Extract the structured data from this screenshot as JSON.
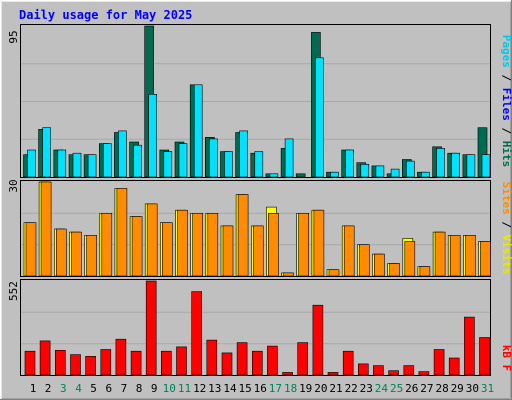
{
  "chart_data": [
    {
      "type": "bar",
      "title": "Daily usage for May 2025",
      "panel": "hits-files-pages",
      "ymax_label": "95",
      "ylim": [
        0,
        95
      ],
      "categories": [
        "1",
        "2",
        "3",
        "4",
        "5",
        "6",
        "7",
        "8",
        "9",
        "10",
        "11",
        "12",
        "13",
        "14",
        "15",
        "16",
        "17",
        "18",
        "19",
        "20",
        "21",
        "22",
        "23",
        "24",
        "25",
        "26",
        "27",
        "28",
        "29",
        "30",
        "31"
      ],
      "weekend_days": [
        "3",
        "4",
        "10",
        "11",
        "17",
        "18",
        "24",
        "25",
        "31"
      ],
      "series": [
        {
          "name": "Hits",
          "color": "#006b51",
          "values": [
            14,
            30,
            17,
            14,
            14,
            21,
            28,
            22,
            95,
            17,
            22,
            58,
            25,
            16,
            28,
            15,
            2,
            18,
            2,
            91,
            3,
            17,
            9,
            7,
            2,
            11,
            3,
            19,
            15,
            14,
            31
          ]
        },
        {
          "name": "Files",
          "color": "#0000ff",
          "values": [
            0,
            0,
            0,
            0,
            0,
            0,
            0,
            0,
            0,
            0,
            0,
            0,
            0,
            0,
            0,
            0,
            0,
            0,
            0,
            0,
            0,
            0,
            0,
            0,
            0,
            0,
            0,
            0,
            0,
            0,
            0
          ]
        },
        {
          "name": "Pages",
          "color": "#00e0ff",
          "values": [
            17,
            31,
            17,
            15,
            14,
            21,
            29,
            20,
            52,
            16,
            21,
            58,
            24,
            16,
            29,
            16,
            2,
            24,
            0,
            75,
            3,
            17,
            8,
            7,
            5,
            10,
            3,
            18,
            15,
            14,
            14
          ]
        }
      ]
    },
    {
      "type": "bar",
      "panel": "visits-sites",
      "ymax_label": "30",
      "ylim": [
        0,
        30
      ],
      "categories": [
        "1",
        "2",
        "3",
        "4",
        "5",
        "6",
        "7",
        "8",
        "9",
        "10",
        "11",
        "12",
        "13",
        "14",
        "15",
        "16",
        "17",
        "18",
        "19",
        "20",
        "21",
        "22",
        "23",
        "24",
        "25",
        "26",
        "27",
        "28",
        "29",
        "30",
        "31"
      ],
      "series": [
        {
          "name": "Visits",
          "color": "#ffff00",
          "values": [
            17,
            30,
            15,
            14,
            13,
            20,
            28,
            19,
            23,
            17,
            21,
            20,
            20,
            16,
            26,
            16,
            22,
            1,
            20,
            21,
            2,
            16,
            10,
            7,
            4,
            12,
            3,
            14,
            13,
            13,
            11
          ]
        },
        {
          "name": "Sites",
          "color": "#ff8c00",
          "values": [
            17,
            30,
            15,
            14,
            13,
            20,
            28,
            19,
            23,
            17,
            21,
            20,
            20,
            16,
            26,
            16,
            20,
            1,
            20,
            21,
            2,
            16,
            10,
            7,
            4,
            11,
            3,
            14,
            13,
            13,
            11
          ]
        }
      ]
    },
    {
      "type": "bar",
      "panel": "kbytes",
      "ymax_label": "552",
      "ylim": [
        0,
        552
      ],
      "categories": [
        "1",
        "2",
        "3",
        "4",
        "5",
        "6",
        "7",
        "8",
        "9",
        "10",
        "11",
        "12",
        "13",
        "14",
        "15",
        "16",
        "17",
        "18",
        "19",
        "20",
        "21",
        "22",
        "23",
        "24",
        "25",
        "26",
        "27",
        "28",
        "29",
        "30",
        "31"
      ],
      "series": [
        {
          "name": "kB F",
          "color": "#ff0000",
          "values": [
            140,
            200,
            145,
            120,
            110,
            150,
            210,
            140,
            552,
            140,
            165,
            490,
            205,
            130,
            190,
            140,
            170,
            15,
            190,
            410,
            15,
            140,
            65,
            55,
            25,
            55,
            20,
            150,
            100,
            340,
            220
          ]
        }
      ]
    }
  ]
}
